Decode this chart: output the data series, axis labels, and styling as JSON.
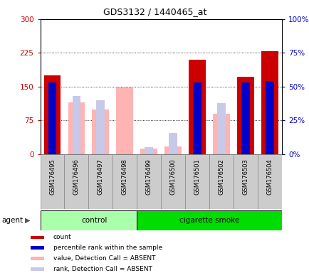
{
  "title": "GDS3132 / 1440465_at",
  "samples": [
    "GSM176495",
    "GSM176496",
    "GSM176497",
    "GSM176498",
    "GSM176499",
    "GSM176500",
    "GSM176501",
    "GSM176502",
    "GSM176503",
    "GSM176504"
  ],
  "n_control": 4,
  "count_present": [
    175,
    0,
    0,
    0,
    0,
    0,
    210,
    0,
    172,
    228
  ],
  "rank_present_pct": [
    53,
    0,
    0,
    0,
    0,
    0,
    53,
    0,
    53,
    54
  ],
  "value_absent": [
    0,
    115,
    100,
    148,
    12,
    18,
    0,
    90,
    0,
    0
  ],
  "rank_absent_pct": [
    0,
    43,
    40,
    0,
    5,
    16,
    0,
    38,
    0,
    0
  ],
  "ylim_left": [
    0,
    300
  ],
  "ylim_right": [
    0,
    100
  ],
  "yticks_left": [
    0,
    75,
    150,
    225,
    300
  ],
  "yticks_right": [
    0,
    25,
    50,
    75,
    100
  ],
  "ytick_labels_left": [
    "0",
    "75",
    "150",
    "225",
    "300"
  ],
  "ytick_labels_right": [
    "0%",
    "25%",
    "50%",
    "75%",
    "100%"
  ],
  "color_count": "#cc0000",
  "color_rank_present": "#0000cc",
  "color_value_absent": "#ffb3b3",
  "color_rank_absent": "#c8c8e8",
  "color_control_bg": "#aaffaa",
  "color_smoke_bg": "#00dd00",
  "bar_width": 0.7,
  "rank_bar_width": 0.35,
  "agent_label": "agent",
  "legend_items": [
    "count",
    "percentile rank within the sample",
    "value, Detection Call = ABSENT",
    "rank, Detection Call = ABSENT"
  ]
}
